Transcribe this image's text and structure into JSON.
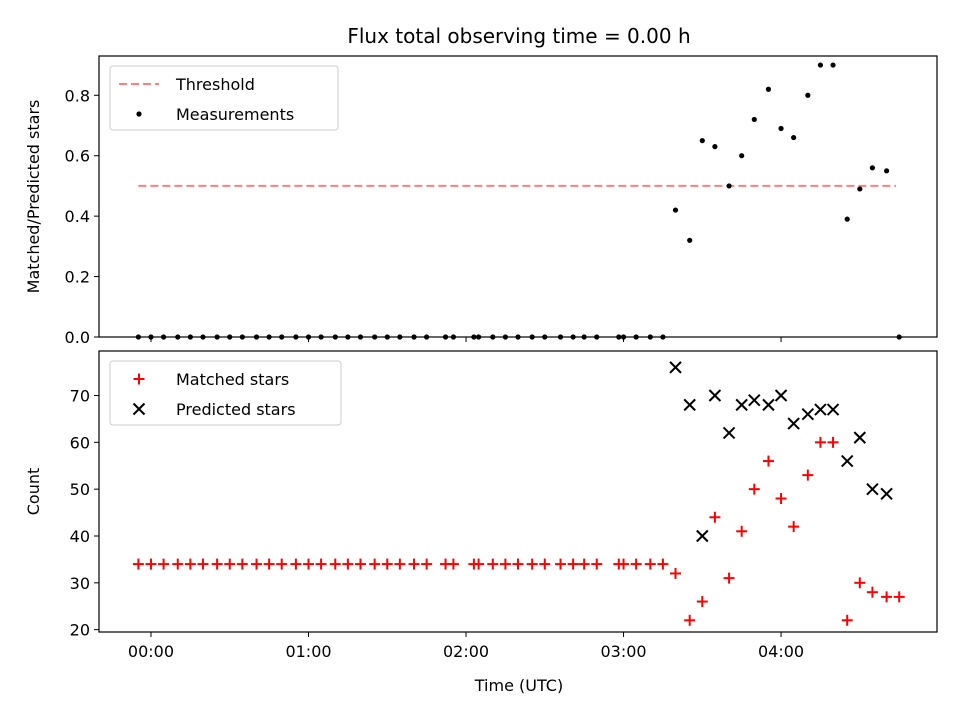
{
  "chart_data": {
    "title": "Flux total observing time = 0.00 h",
    "xlabel": "Time (UTC)",
    "x_tick_labels": [
      "00:00",
      "01:00",
      "02:00",
      "03:00",
      "04:00"
    ],
    "x_ticks_hours": [
      0,
      1,
      2,
      3,
      4
    ],
    "xlim_hours": [
      -0.33,
      4.99
    ],
    "colors": {
      "threshold": "#ff7f7f",
      "measurements": "#000000",
      "matched": "#ff0000",
      "predicted": "#000000"
    },
    "panels": [
      {
        "type": "scatter",
        "ylabel": "Matched/Predicted stars",
        "ylim": [
          0,
          0.93
        ],
        "y_ticks": [
          0.0,
          0.2,
          0.4,
          0.6,
          0.8
        ],
        "y_tick_labels": [
          "0.0",
          "0.2",
          "0.4",
          "0.6",
          "0.8"
        ],
        "legend": {
          "position": "upper-left",
          "entries": [
            "Threshold",
            "Measurements"
          ]
        },
        "threshold": {
          "name": "Threshold",
          "y": 0.5,
          "x_range_hours": [
            -0.08,
            4.73
          ]
        },
        "measurements": {
          "name": "Measurements",
          "x_hours": [
            -0.08,
            0.0,
            0.08,
            0.17,
            0.25,
            0.33,
            0.42,
            0.5,
            0.58,
            0.67,
            0.75,
            0.83,
            0.92,
            1.0,
            1.08,
            1.17,
            1.25,
            1.33,
            1.42,
            1.5,
            1.58,
            1.67,
            1.75,
            1.87,
            1.92,
            2.05,
            2.08,
            2.17,
            2.25,
            2.33,
            2.42,
            2.5,
            2.6,
            2.68,
            2.75,
            2.83,
            2.97,
            3.0,
            3.08,
            3.17,
            3.25,
            3.33,
            3.42,
            3.5,
            3.58,
            3.67,
            3.75,
            3.83,
            3.92,
            4.0,
            4.08,
            4.17,
            4.25,
            4.33,
            4.42,
            4.5,
            4.58,
            4.67,
            4.75
          ],
          "y": [
            0,
            0,
            0,
            0,
            0,
            0,
            0,
            0,
            0,
            0,
            0,
            0,
            0,
            0,
            0,
            0,
            0,
            0,
            0,
            0,
            0,
            0,
            0,
            0,
            0,
            0,
            0,
            0,
            0,
            0,
            0,
            0,
            0,
            0,
            0,
            0,
            0,
            0,
            0,
            0,
            0,
            0.42,
            0.32,
            0.65,
            0.63,
            0.5,
            0.6,
            0.72,
            0.82,
            0.69,
            0.66,
            0.8,
            0.9,
            0.9,
            0.39,
            0.49,
            0.56,
            0.55,
            0
          ]
        }
      },
      {
        "type": "scatter",
        "ylabel": "Count",
        "ylim": [
          19.5,
          79.5
        ],
        "y_ticks": [
          20,
          30,
          40,
          50,
          60,
          70
        ],
        "y_tick_labels": [
          "20",
          "30",
          "40",
          "50",
          "60",
          "70"
        ],
        "legend": {
          "position": "upper-left",
          "entries": [
            "Matched stars",
            "Predicted stars"
          ]
        },
        "matched": {
          "name": "Matched stars",
          "x_hours": [
            -0.08,
            0.0,
            0.08,
            0.17,
            0.25,
            0.33,
            0.42,
            0.5,
            0.58,
            0.67,
            0.75,
            0.83,
            0.92,
            1.0,
            1.08,
            1.17,
            1.25,
            1.33,
            1.42,
            1.5,
            1.58,
            1.67,
            1.75,
            1.87,
            1.92,
            2.05,
            2.08,
            2.17,
            2.25,
            2.33,
            2.42,
            2.5,
            2.6,
            2.68,
            2.75,
            2.83,
            2.97,
            3.0,
            3.08,
            3.17,
            3.25,
            3.33,
            3.42,
            3.5,
            3.58,
            3.67,
            3.75,
            3.83,
            3.92,
            4.0,
            4.08,
            4.17,
            4.25,
            4.33,
            4.42,
            4.5,
            4.58,
            4.67,
            4.75
          ],
          "y": [
            34,
            34,
            34,
            34,
            34,
            34,
            34,
            34,
            34,
            34,
            34,
            34,
            34,
            34,
            34,
            34,
            34,
            34,
            34,
            34,
            34,
            34,
            34,
            34,
            34,
            34,
            34,
            34,
            34,
            34,
            34,
            34,
            34,
            34,
            34,
            34,
            34,
            34,
            34,
            34,
            34,
            32,
            22,
            26,
            44,
            31,
            41,
            50,
            56,
            48,
            42,
            53,
            60,
            60,
            22,
            30,
            28,
            27,
            27
          ]
        },
        "predicted": {
          "name": "Predicted stars",
          "x_hours": [
            3.33,
            3.42,
            3.5,
            3.58,
            3.67,
            3.75,
            3.83,
            3.92,
            4.0,
            4.08,
            4.17,
            4.25,
            4.33,
            4.42,
            4.5,
            4.58,
            4.67
          ],
          "y": [
            76,
            68,
            40,
            70,
            62,
            68,
            69,
            68,
            70,
            64,
            66,
            67,
            67,
            56,
            61,
            50,
            49
          ]
        }
      }
    ]
  }
}
